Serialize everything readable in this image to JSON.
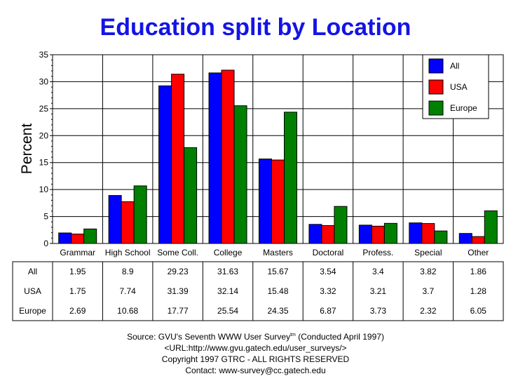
{
  "chart_data": {
    "type": "bar",
    "title": "Education split by Location",
    "ylabel": "Percent",
    "xlabel": "",
    "ylim": [
      0,
      35
    ],
    "yticks": [
      0,
      5,
      10,
      15,
      20,
      25,
      30,
      35
    ],
    "grid": true,
    "legend_position": "top-right",
    "categories": [
      "Grammar",
      "High School",
      "Some Coll.",
      "College",
      "Masters",
      "Doctoral",
      "Profess.",
      "Special",
      "Other"
    ],
    "series": [
      {
        "name": "All",
        "color": "#0000ff",
        "values": [
          1.95,
          8.9,
          29.23,
          31.63,
          15.67,
          3.54,
          3.4,
          3.82,
          1.86
        ]
      },
      {
        "name": "USA",
        "color": "#ff0000",
        "values": [
          1.75,
          7.74,
          31.39,
          32.14,
          15.48,
          3.32,
          3.21,
          3.7,
          1.28
        ]
      },
      {
        "name": "Europe",
        "color": "#008000",
        "values": [
          2.69,
          10.68,
          17.77,
          25.54,
          24.35,
          6.87,
          3.73,
          2.32,
          6.05
        ]
      }
    ],
    "table": {
      "rows": [
        {
          "label": "All",
          "cells": [
            "1.95",
            "8.9",
            "29.23",
            "31.63",
            "15.67",
            "3.54",
            "3.4",
            "3.82",
            "1.86"
          ]
        },
        {
          "label": "USA",
          "cells": [
            "1.75",
            "7.74",
            "31.39",
            "32.14",
            "15.48",
            "3.32",
            "3.21",
            "3.7",
            "1.28"
          ]
        },
        {
          "label": "Europe",
          "cells": [
            "2.69",
            "10.68",
            "17.77",
            "25.54",
            "24.35",
            "6.87",
            "3.73",
            "2.32",
            "6.05"
          ]
        }
      ]
    }
  },
  "footer": {
    "source_prefix": "Source: GVU's Seventh WWW User Survey",
    "source_tm": "tm",
    "source_suffix": " (Conducted April 1997)",
    "url": "<URL:http://www.gvu.gatech.edu/user_surveys/>",
    "copyright": "Copyright 1997 GTRC - ALL RIGHTS RESERVED",
    "contact": "Contact: www-survey@cc.gatech.edu"
  }
}
